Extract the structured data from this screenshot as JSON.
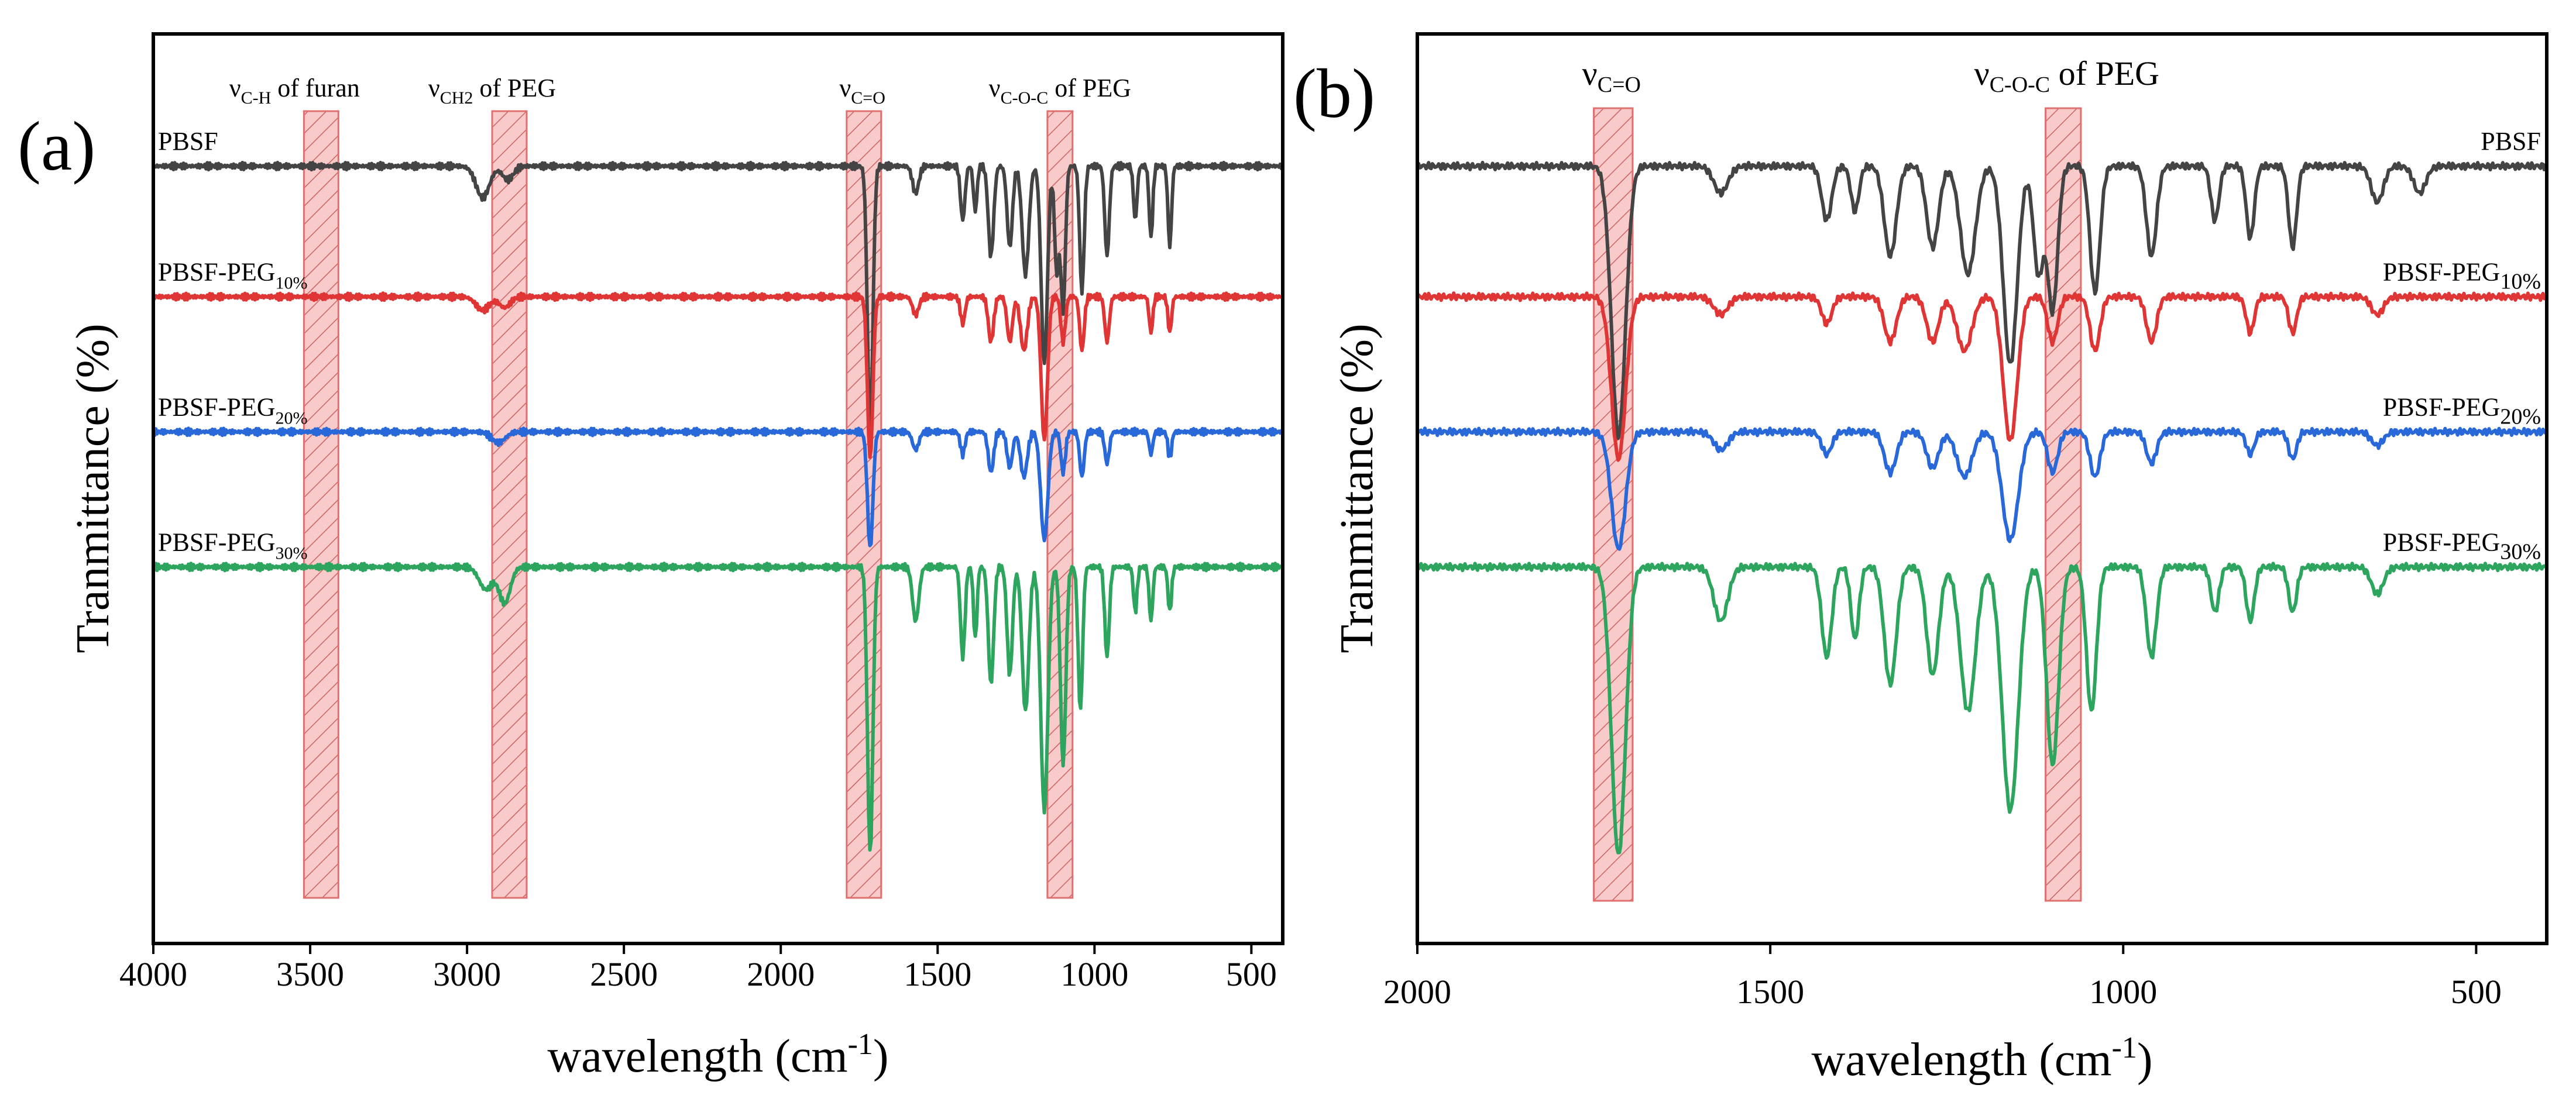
{
  "chart_data": [
    {
      "panel": "(a)",
      "type": "line",
      "title": "",
      "xlabel_main": "wavelength (cm",
      "xlabel_sup": "-1",
      "xlabel_tail": ")",
      "ylabel": "Tranmittance (%)",
      "xlim": [
        4000,
        400
      ],
      "ylim_normalized": [
        0,
        1
      ],
      "x_ticks": [
        4000,
        3500,
        3000,
        2500,
        2000,
        1500,
        1000,
        500
      ],
      "y_ticks": [],
      "grid": false,
      "series": [
        {
          "name": "PBSF",
          "label_main": "PBSF",
          "label_sub": "",
          "color": "#444444",
          "baseline": 0.9,
          "peaks": [
            [
              2950,
              0.035,
              30
            ],
            [
              2870,
              0.015,
              25
            ],
            [
              1715,
              0.3,
              12
            ],
            [
              1570,
              0.03,
              14
            ],
            [
              1420,
              0.06,
              10
            ],
            [
              1380,
              0.05,
              8
            ],
            [
              1330,
              0.1,
              12
            ],
            [
              1270,
              0.09,
              12
            ],
            [
              1220,
              0.12,
              15
            ],
            [
              1160,
              0.22,
              14
            ],
            [
              1120,
              0.12,
              10
            ],
            [
              1100,
              0.16,
              10
            ],
            [
              1040,
              0.14,
              10
            ],
            [
              960,
              0.1,
              10
            ],
            [
              870,
              0.06,
              8
            ],
            [
              820,
              0.08,
              8
            ],
            [
              760,
              0.09,
              8
            ]
          ]
        },
        {
          "name": "PBSF-PEG10%",
          "label_main": "PBSF-PEG",
          "label_sub": "10%",
          "color": "#e03535",
          "baseline": 0.755,
          "peaks": [
            [
              2950,
              0.015,
              30
            ],
            [
              2880,
              0.012,
              25
            ],
            [
              1715,
              0.18,
              12
            ],
            [
              1570,
              0.02,
              14
            ],
            [
              1420,
              0.03,
              10
            ],
            [
              1330,
              0.05,
              12
            ],
            [
              1270,
              0.05,
              12
            ],
            [
              1225,
              0.06,
              15
            ],
            [
              1160,
              0.16,
              14
            ],
            [
              1100,
              0.05,
              10
            ],
            [
              1040,
              0.06,
              10
            ],
            [
              960,
              0.05,
              10
            ],
            [
              820,
              0.04,
              8
            ],
            [
              760,
              0.04,
              8
            ]
          ]
        },
        {
          "name": "PBSF-PEG20%",
          "label_main": "PBSF-PEG",
          "label_sub": "20%",
          "color": "#2868d8",
          "baseline": 0.605,
          "peaks": [
            [
              2900,
              0.012,
              30
            ],
            [
              1715,
              0.13,
              12
            ],
            [
              1570,
              0.02,
              14
            ],
            [
              1420,
              0.025,
              10
            ],
            [
              1330,
              0.045,
              12
            ],
            [
              1270,
              0.04,
              12
            ],
            [
              1225,
              0.05,
              15
            ],
            [
              1160,
              0.12,
              16
            ],
            [
              1100,
              0.045,
              10
            ],
            [
              1040,
              0.05,
              10
            ],
            [
              960,
              0.035,
              10
            ],
            [
              820,
              0.025,
              8
            ],
            [
              760,
              0.03,
              8
            ]
          ]
        },
        {
          "name": "PBSF-PEG30%",
          "label_main": "PBSF-PEG",
          "label_sub": "30%",
          "color": "#2ea55e",
          "baseline": 0.455,
          "peaks": [
            [
              2940,
              0.025,
              30
            ],
            [
              2880,
              0.04,
              25
            ],
            [
              1715,
              0.32,
              12
            ],
            [
              1570,
              0.06,
              14
            ],
            [
              1420,
              0.1,
              10
            ],
            [
              1380,
              0.08,
              8
            ],
            [
              1330,
              0.13,
              12
            ],
            [
              1270,
              0.12,
              12
            ],
            [
              1220,
              0.16,
              15
            ],
            [
              1160,
              0.27,
              16
            ],
            [
              1100,
              0.22,
              12
            ],
            [
              1045,
              0.16,
              10
            ],
            [
              960,
              0.1,
              10
            ],
            [
              870,
              0.05,
              8
            ],
            [
              820,
              0.06,
              8
            ],
            [
              760,
              0.05,
              8
            ]
          ]
        }
      ],
      "bands": [
        {
          "name": "furan-band",
          "x_range": [
            3520,
            3410
          ],
          "label_prefix": "ν",
          "label_sub": "C-H",
          "label_suffix": " of furan",
          "label_anchor_x": 3550
        },
        {
          "name": "ch2-band",
          "x_range": [
            2920,
            2810
          ],
          "label_prefix": "ν",
          "label_sub": "CH2",
          "label_suffix": " of PEG",
          "label_anchor_x": 2920
        },
        {
          "name": "co-band",
          "x_range": [
            1790,
            1680
          ],
          "label_prefix": "ν",
          "label_sub": "C=O",
          "label_suffix": "",
          "label_anchor_x": 1740
        },
        {
          "name": "coc-band",
          "x_range": [
            1150,
            1070
          ],
          "label_prefix": "ν",
          "label_sub": "C-O-C",
          "label_suffix": " of PEG",
          "label_anchor_x": 1110
        }
      ]
    },
    {
      "panel": "(b)",
      "type": "line",
      "title": "",
      "xlabel_main": "wavelength (cm",
      "xlabel_sup": "-1",
      "xlabel_tail": ")",
      "ylabel": "Tranmittance (%)",
      "xlim": [
        2000,
        400
      ],
      "ylim_normalized": [
        0,
        1
      ],
      "x_ticks": [
        2000,
        1500,
        1000,
        500
      ],
      "y_ticks": [],
      "grid": false,
      "series": [
        {
          "name": "PBSF",
          "label_main": "PBSF",
          "label_sub": "",
          "color": "#444444",
          "baseline": 0.9,
          "peaks": [
            [
              1715,
              0.3,
              14
            ],
            [
              1570,
              0.03,
              14
            ],
            [
              1420,
              0.06,
              10
            ],
            [
              1380,
              0.05,
              8
            ],
            [
              1330,
              0.1,
              12
            ],
            [
              1270,
              0.09,
              12
            ],
            [
              1220,
              0.12,
              15
            ],
            [
              1160,
              0.22,
              14
            ],
            [
              1120,
              0.12,
              10
            ],
            [
              1100,
              0.16,
              10
            ],
            [
              1040,
              0.14,
              10
            ],
            [
              960,
              0.1,
              10
            ],
            [
              870,
              0.06,
              8
            ],
            [
              820,
              0.08,
              8
            ],
            [
              760,
              0.09,
              8
            ],
            [
              640,
              0.04,
              12
            ],
            [
              580,
              0.03,
              12
            ]
          ]
        },
        {
          "name": "PBSF-PEG10%",
          "label_main": "PBSF-PEG",
          "label_sub": "10%",
          "color": "#e03535",
          "baseline": 0.755,
          "peaks": [
            [
              1715,
              0.18,
              14
            ],
            [
              1570,
              0.02,
              14
            ],
            [
              1420,
              0.03,
              10
            ],
            [
              1330,
              0.05,
              12
            ],
            [
              1270,
              0.05,
              12
            ],
            [
              1225,
              0.06,
              15
            ],
            [
              1160,
              0.16,
              14
            ],
            [
              1100,
              0.05,
              10
            ],
            [
              1040,
              0.06,
              10
            ],
            [
              960,
              0.05,
              10
            ],
            [
              820,
              0.04,
              8
            ],
            [
              760,
              0.04,
              8
            ],
            [
              640,
              0.02,
              12
            ]
          ]
        },
        {
          "name": "PBSF-PEG20%",
          "label_main": "PBSF-PEG",
          "label_sub": "20%",
          "color": "#2868d8",
          "baseline": 0.605,
          "peaks": [
            [
              1715,
              0.13,
              14
            ],
            [
              1570,
              0.02,
              14
            ],
            [
              1420,
              0.025,
              10
            ],
            [
              1330,
              0.045,
              12
            ],
            [
              1270,
              0.04,
              12
            ],
            [
              1225,
              0.05,
              15
            ],
            [
              1160,
              0.12,
              16
            ],
            [
              1100,
              0.045,
              10
            ],
            [
              1040,
              0.05,
              10
            ],
            [
              960,
              0.035,
              10
            ],
            [
              820,
              0.025,
              8
            ],
            [
              760,
              0.03,
              8
            ],
            [
              640,
              0.015,
              12
            ]
          ]
        },
        {
          "name": "PBSF-PEG30%",
          "label_main": "PBSF-PEG",
          "label_sub": "30%",
          "color": "#2ea55e",
          "baseline": 0.455,
          "peaks": [
            [
              1715,
              0.32,
              14
            ],
            [
              1570,
              0.06,
              14
            ],
            [
              1420,
              0.1,
              10
            ],
            [
              1380,
              0.08,
              8
            ],
            [
              1330,
              0.13,
              12
            ],
            [
              1270,
              0.12,
              12
            ],
            [
              1220,
              0.16,
              15
            ],
            [
              1160,
              0.27,
              16
            ],
            [
              1100,
              0.22,
              12
            ],
            [
              1045,
              0.16,
              10
            ],
            [
              960,
              0.1,
              10
            ],
            [
              870,
              0.05,
              8
            ],
            [
              820,
              0.06,
              8
            ],
            [
              760,
              0.05,
              8
            ],
            [
              640,
              0.03,
              12
            ]
          ]
        }
      ],
      "bands": [
        {
          "name": "co-band",
          "x_range": [
            1750,
            1695
          ],
          "label_prefix": "ν",
          "label_sub": "C=O",
          "label_suffix": "",
          "label_anchor_x": 1725
        },
        {
          "name": "coc-band",
          "x_range": [
            1110,
            1060
          ],
          "label_prefix": "ν",
          "label_sub": "C-O-C",
          "label_suffix": " of PEG",
          "label_anchor_x": 1080
        }
      ]
    }
  ],
  "colors": {
    "band_fill": "#f7b8b8",
    "band_stroke": "#e07070",
    "axis": "#000000"
  }
}
